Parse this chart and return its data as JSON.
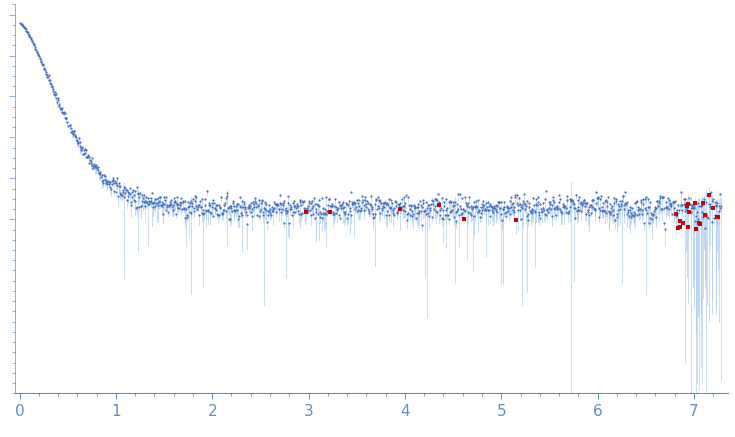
{
  "title": "",
  "xlabel": "",
  "ylabel": "",
  "xlim": [
    -0.05,
    7.35
  ],
  "ylim": [
    -0.85,
    1.05
  ],
  "dot_color": "#4472C4",
  "error_color": "#A8C8F0",
  "outlier_color": "#CC0000",
  "bg_color": "#FFFFFF",
  "tick_color": "#6090C8",
  "spine_color": "#6090C8",
  "n_points": 1200,
  "seed": 7
}
